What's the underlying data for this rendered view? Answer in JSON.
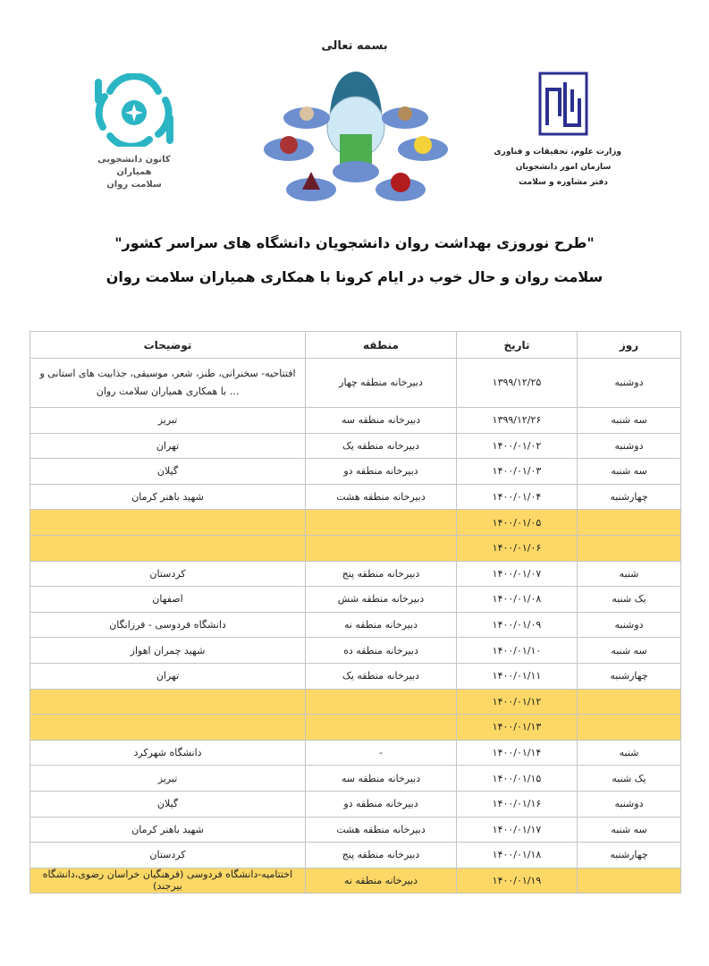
{
  "header": {
    "bismillah": "بسمه تعالی",
    "left_logo_caption": [
      "کانون دانشجویی همیاران",
      "سلامت روان"
    ],
    "right_logo_caption": [
      "وزارت علوم، تحقیقات و فناوری",
      "سازمان امور دانشجویان",
      "دفتر مشاوره و سلامت"
    ],
    "title_line1": "\"طرح نوروزی بهداشت روان دانشجویان دانشگاه های سراسر کشور\"",
    "title_line2": "سلامت روان و حال خوب در ایام کرونا با همکاری همیاران سلامت روان"
  },
  "colors": {
    "highlight": "#fdd866",
    "logo_teal": "#2bb5c4",
    "logo_navy": "#2b2f8f"
  },
  "table": {
    "columns": [
      "روز",
      "تاریخ",
      "منطقه",
      "توضیحات"
    ],
    "rows": [
      {
        "day": "دوشنبه",
        "date": "۱۳۹۹/۱۲/۲۵",
        "region": "دبیرخانه منطقه چهار",
        "desc": "افتتاحیه- سخنرانی، طنز، شعر، موسیقی، جذابیت های استانی و ... با همکاری همیاران سلامت روان",
        "highlight": false
      },
      {
        "day": "سه شنبه",
        "date": "۱۳۹۹/۱۲/۲۶",
        "region": "دبیرخانه منطقه سه",
        "desc": "تبریز",
        "highlight": false
      },
      {
        "day": "دوشنبه",
        "date": "۱۴۰۰/۰۱/۰۲",
        "region": "دبیرخانه منطقه یک",
        "desc": "تهران",
        "highlight": false
      },
      {
        "day": "سه شنبه",
        "date": "۱۴۰۰/۰۱/۰۳",
        "region": "دبیرخانه منطقه دو",
        "desc": "گیلان",
        "highlight": false
      },
      {
        "day": "چهارشنبه",
        "date": "۱۴۰۰/۰۱/۰۴",
        "region": "دبیرخانه منطقه هشت",
        "desc": "شهید باهنر کرمان",
        "highlight": false
      },
      {
        "day": "",
        "date": "۱۴۰۰/۰۱/۰۵",
        "region": "",
        "desc": "",
        "highlight": true
      },
      {
        "day": "",
        "date": "۱۴۰۰/۰۱/۰۶",
        "region": "",
        "desc": "",
        "highlight": true
      },
      {
        "day": "شنبه",
        "date": "۱۴۰۰/۰۱/۰۷",
        "region": "دبیرخانه منطقه پنج",
        "desc": "کردستان",
        "highlight": false
      },
      {
        "day": "یک شنبه",
        "date": "۱۴۰۰/۰۱/۰۸",
        "region": "دبیرخانه منطقه شش",
        "desc": "اصفهان",
        "highlight": false
      },
      {
        "day": "دوشنبه",
        "date": "۱۴۰۰/۰۱/۰۹",
        "region": "دبیرخانه منطقه نه",
        "desc": "دانشگاه فردوسی - فرزانگان",
        "highlight": false
      },
      {
        "day": "سه شنبه",
        "date": "۱۴۰۰/۰۱/۱۰",
        "region": "دبیرخانه منطقه ده",
        "desc": "شهید چمران اهواز",
        "highlight": false
      },
      {
        "day": "چهارشنبه",
        "date": "۱۴۰۰/۰۱/۱۱",
        "region": "دبیرخانه منطقه یک",
        "desc": "تهران",
        "highlight": false
      },
      {
        "day": "",
        "date": "۱۴۰۰/۰۱/۱۲",
        "region": "",
        "desc": "",
        "highlight": true
      },
      {
        "day": "",
        "date": "۱۴۰۰/۰۱/۱۳",
        "region": "",
        "desc": "",
        "highlight": true
      },
      {
        "day": "شنبه",
        "date": "۱۴۰۰/۰۱/۱۴",
        "region": "-",
        "desc": "دانشگاه شهرکرد",
        "highlight": false
      },
      {
        "day": "یک شنبه",
        "date": "۱۴۰۰/۰۱/۱۵",
        "region": "دبیرخانه منطقه سه",
        "desc": "تبریز",
        "highlight": false
      },
      {
        "day": "دوشنبه",
        "date": "۱۴۰۰/۰۱/۱۶",
        "region": "دبیرخانه منطقه دو",
        "desc": "گیلان",
        "highlight": false
      },
      {
        "day": "سه شنبه",
        "date": "۱۴۰۰/۰۱/۱۷",
        "region": "دبیرخانه منطقه هشت",
        "desc": "شهید باهنر کرمان",
        "highlight": false
      },
      {
        "day": "چهارشنبه",
        "date": "۱۴۰۰/۰۱/۱۸",
        "region": "دبیرخانه منطقه پنج",
        "desc": "کردستان",
        "highlight": false
      },
      {
        "day": "",
        "date": "۱۴۰۰/۰۱/۱۹",
        "region": "دبیرخانه منطقه نه",
        "desc": "اختتامیه-دانشگاه فردوسی (فرهنگیان خراسان رضوی،دانشگاه بیرجند)",
        "highlight": true
      }
    ]
  }
}
